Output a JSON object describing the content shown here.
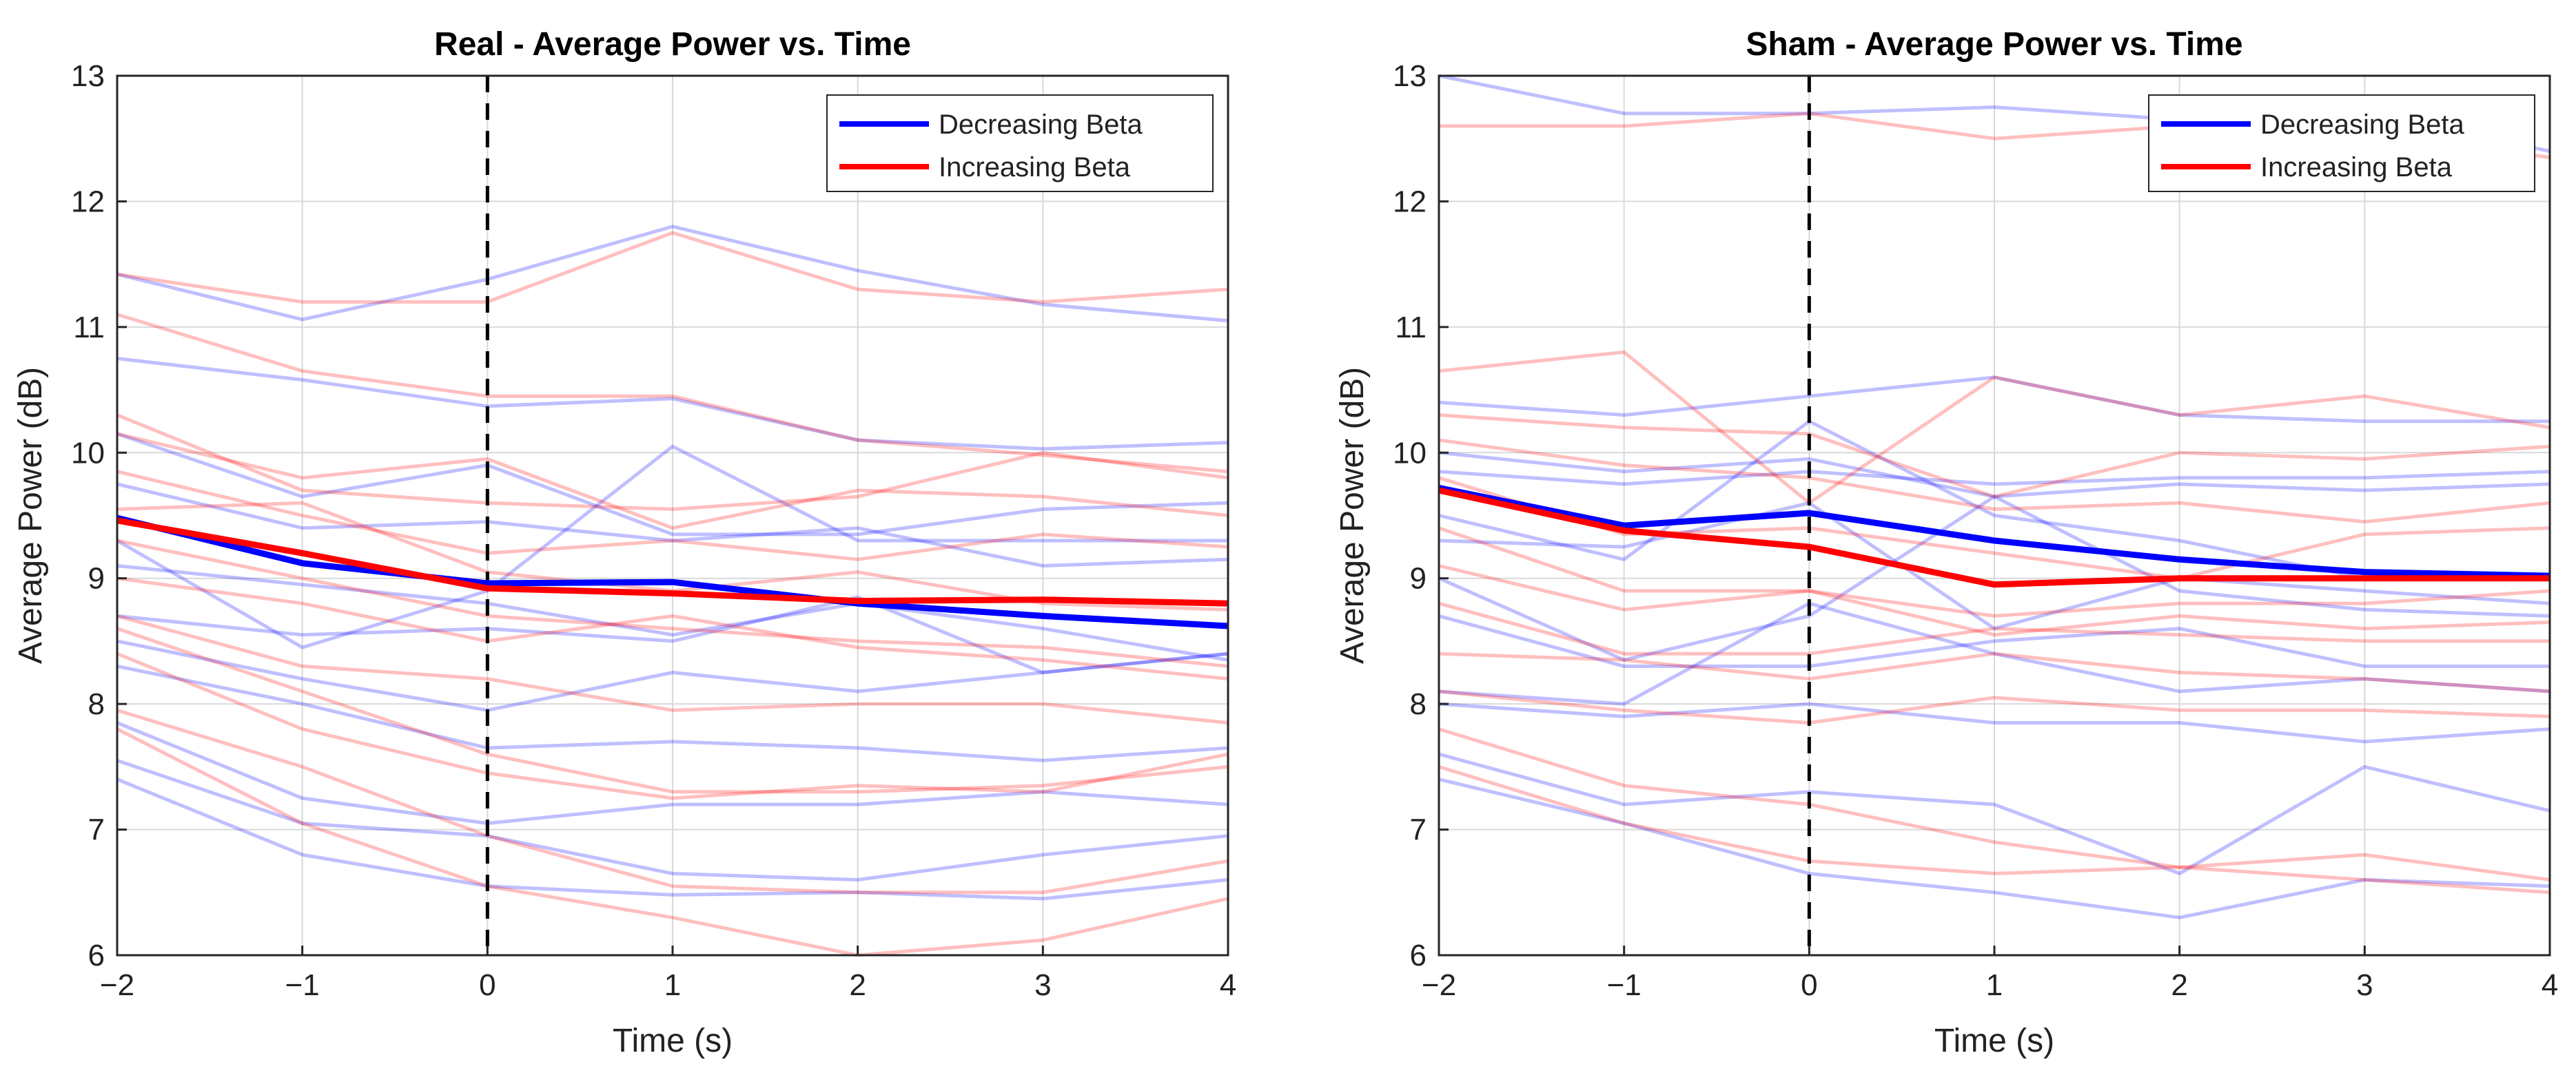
{
  "figure": {
    "background": "#ffffff",
    "colors": {
      "decreasing": "#0000ff",
      "increasing": "#ff0000",
      "grid": "#d9d9d9",
      "axis": "#262626",
      "marker": "#000000"
    }
  },
  "chart_data": [
    {
      "type": "line",
      "title": "Real - Average Power vs. Time",
      "xlabel": "Time (s)",
      "ylabel": "Average Power (dB)",
      "xlim": [
        -2,
        4
      ],
      "ylim": [
        6,
        13
      ],
      "xticks": [
        -2,
        -1,
        0,
        1,
        2,
        3,
        4
      ],
      "xtick_labels": [
        "−2",
        "−1",
        "0",
        "1",
        "2",
        "3",
        "4"
      ],
      "yticks": [
        6,
        7,
        8,
        9,
        10,
        11,
        12,
        13
      ],
      "ytick_labels": [
        "6",
        "7",
        "8",
        "9",
        "10",
        "11",
        "12",
        "13"
      ],
      "grid": true,
      "vline_x": 0,
      "legend": {
        "position": "top-right",
        "entries": [
          {
            "label": "Decreasing Beta",
            "color": "#0000ff"
          },
          {
            "label": "Increasing Beta",
            "color": "#ff0000"
          }
        ]
      },
      "x": [
        -2,
        -1,
        0,
        1,
        2,
        3,
        4
      ],
      "mean_series": [
        {
          "name": "Decreasing Beta",
          "color": "#0000ff",
          "values": [
            9.48,
            9.12,
            8.96,
            8.97,
            8.8,
            8.7,
            8.62
          ]
        },
        {
          "name": "Increasing Beta",
          "color": "#ff0000",
          "values": [
            9.46,
            9.2,
            8.92,
            8.88,
            8.82,
            8.83,
            8.8
          ]
        }
      ],
      "individual_series": [
        {
          "group": "Decreasing Beta",
          "values": [
            11.42,
            11.06,
            11.38,
            11.8,
            11.45,
            11.18,
            11.05
          ]
        },
        {
          "group": "Decreasing Beta",
          "values": [
            10.75,
            10.58,
            10.37,
            10.43,
            10.1,
            10.03,
            10.08
          ]
        },
        {
          "group": "Decreasing Beta",
          "values": [
            10.15,
            9.65,
            9.9,
            9.35,
            9.35,
            9.55,
            9.6
          ]
        },
        {
          "group": "Decreasing Beta",
          "values": [
            9.75,
            9.4,
            9.45,
            9.3,
            9.4,
            9.1,
            9.15
          ]
        },
        {
          "group": "Decreasing Beta",
          "values": [
            9.3,
            8.45,
            8.9,
            10.05,
            9.3,
            9.3,
            9.3
          ]
        },
        {
          "group": "Decreasing Beta",
          "values": [
            9.1,
            8.95,
            8.8,
            8.55,
            8.8,
            8.6,
            8.35
          ]
        },
        {
          "group": "Decreasing Beta",
          "values": [
            8.7,
            8.55,
            8.6,
            8.5,
            8.85,
            8.25,
            8.4
          ]
        },
        {
          "group": "Decreasing Beta",
          "values": [
            8.5,
            8.2,
            7.95,
            8.25,
            8.1,
            8.25,
            8.4
          ]
        },
        {
          "group": "Decreasing Beta",
          "values": [
            8.3,
            8.0,
            7.65,
            7.7,
            7.65,
            7.55,
            7.65
          ]
        },
        {
          "group": "Decreasing Beta",
          "values": [
            7.85,
            7.25,
            7.05,
            7.2,
            7.2,
            7.3,
            7.2
          ]
        },
        {
          "group": "Decreasing Beta",
          "values": [
            7.55,
            7.05,
            6.95,
            6.65,
            6.6,
            6.8,
            6.95
          ]
        },
        {
          "group": "Decreasing Beta",
          "values": [
            7.4,
            6.8,
            6.55,
            6.48,
            6.5,
            6.45,
            6.6
          ]
        },
        {
          "group": "Increasing Beta",
          "values": [
            11.42,
            11.2,
            11.2,
            11.75,
            11.3,
            11.2,
            11.3
          ]
        },
        {
          "group": "Increasing Beta",
          "values": [
            11.1,
            10.65,
            10.45,
            10.45,
            10.1,
            9.98,
            9.85
          ]
        },
        {
          "group": "Increasing Beta",
          "values": [
            10.3,
            9.7,
            9.6,
            9.55,
            9.65,
            10.0,
            9.8
          ]
        },
        {
          "group": "Increasing Beta",
          "values": [
            10.15,
            9.8,
            9.95,
            9.4,
            9.7,
            9.65,
            9.5
          ]
        },
        {
          "group": "Increasing Beta",
          "values": [
            9.85,
            9.5,
            9.2,
            9.3,
            9.15,
            9.35,
            9.25
          ]
        },
        {
          "group": "Increasing Beta",
          "values": [
            9.55,
            9.6,
            9.05,
            8.9,
            9.05,
            8.8,
            8.75
          ]
        },
        {
          "group": "Increasing Beta",
          "values": [
            9.3,
            9.0,
            8.7,
            8.6,
            8.5,
            8.45,
            8.3
          ]
        },
        {
          "group": "Increasing Beta",
          "values": [
            9.0,
            8.8,
            8.5,
            8.7,
            8.45,
            8.35,
            8.2
          ]
        },
        {
          "group": "Increasing Beta",
          "values": [
            8.7,
            8.3,
            8.2,
            7.95,
            8.0,
            8.0,
            7.85
          ]
        },
        {
          "group": "Increasing Beta",
          "values": [
            8.6,
            8.1,
            7.6,
            7.3,
            7.3,
            7.35,
            7.5
          ]
        },
        {
          "group": "Increasing Beta",
          "values": [
            8.4,
            7.8,
            7.45,
            7.25,
            7.35,
            7.3,
            7.6
          ]
        },
        {
          "group": "Increasing Beta",
          "values": [
            7.95,
            7.5,
            6.95,
            6.55,
            6.5,
            6.5,
            6.75
          ]
        },
        {
          "group": "Increasing Beta",
          "values": [
            7.8,
            7.05,
            6.55,
            6.3,
            6.0,
            6.12,
            6.45
          ]
        }
      ]
    },
    {
      "type": "line",
      "title": "Sham - Average Power vs. Time",
      "xlabel": "Time (s)",
      "ylabel": "Average Power (dB)",
      "xlim": [
        -2,
        4
      ],
      "ylim": [
        6,
        13
      ],
      "xticks": [
        -2,
        -1,
        0,
        1,
        2,
        3,
        4
      ],
      "xtick_labels": [
        "−2",
        "−1",
        "0",
        "1",
        "2",
        "3",
        "4"
      ],
      "yticks": [
        6,
        7,
        8,
        9,
        10,
        11,
        12,
        13
      ],
      "ytick_labels": [
        "6",
        "7",
        "8",
        "9",
        "10",
        "11",
        "12",
        "13"
      ],
      "grid": true,
      "vline_x": 0,
      "legend": {
        "position": "top-right",
        "entries": [
          {
            "label": "Decreasing Beta",
            "color": "#0000ff"
          },
          {
            "label": "Increasing Beta",
            "color": "#ff0000"
          }
        ]
      },
      "x": [
        -2,
        -1,
        0,
        1,
        2,
        3,
        4
      ],
      "mean_series": [
        {
          "name": "Decreasing Beta",
          "color": "#0000ff",
          "values": [
            9.72,
            9.42,
            9.52,
            9.3,
            9.15,
            9.05,
            9.02
          ]
        },
        {
          "name": "Increasing Beta",
          "color": "#ff0000",
          "values": [
            9.7,
            9.38,
            9.25,
            8.95,
            9.0,
            9.0,
            9.0
          ]
        }
      ],
      "individual_series": [
        {
          "group": "Decreasing Beta",
          "values": [
            13.0,
            12.7,
            12.7,
            12.75,
            12.65,
            12.7,
            12.4
          ]
        },
        {
          "group": "Decreasing Beta",
          "values": [
            10.4,
            10.3,
            10.45,
            10.6,
            10.3,
            10.25,
            10.25
          ]
        },
        {
          "group": "Decreasing Beta",
          "values": [
            10.0,
            9.85,
            9.95,
            9.65,
            9.75,
            9.7,
            9.75
          ]
        },
        {
          "group": "Decreasing Beta",
          "values": [
            9.85,
            9.75,
            9.85,
            9.75,
            9.8,
            9.8,
            9.85
          ]
        },
        {
          "group": "Decreasing Beta",
          "values": [
            9.5,
            9.15,
            10.25,
            9.5,
            9.3,
            9.0,
            9.0
          ]
        },
        {
          "group": "Decreasing Beta",
          "values": [
            9.3,
            9.25,
            9.6,
            8.6,
            9.0,
            8.9,
            8.8
          ]
        },
        {
          "group": "Decreasing Beta",
          "values": [
            9.0,
            8.35,
            8.7,
            9.65,
            8.9,
            8.75,
            8.7
          ]
        },
        {
          "group": "Decreasing Beta",
          "values": [
            8.7,
            8.3,
            8.3,
            8.5,
            8.6,
            8.3,
            8.3
          ]
        },
        {
          "group": "Decreasing Beta",
          "values": [
            8.1,
            8.0,
            8.8,
            8.4,
            8.1,
            8.2,
            8.1
          ]
        },
        {
          "group": "Decreasing Beta",
          "values": [
            8.0,
            7.9,
            8.0,
            7.85,
            7.85,
            7.7,
            7.8
          ]
        },
        {
          "group": "Decreasing Beta",
          "values": [
            7.6,
            7.2,
            7.3,
            7.2,
            6.65,
            7.5,
            7.15
          ]
        },
        {
          "group": "Decreasing Beta",
          "values": [
            7.4,
            7.05,
            6.65,
            6.5,
            6.3,
            6.6,
            6.55
          ]
        },
        {
          "group": "Increasing Beta",
          "values": [
            12.6,
            12.6,
            12.7,
            12.5,
            12.6,
            12.55,
            12.35
          ]
        },
        {
          "group": "Increasing Beta",
          "values": [
            10.65,
            10.8,
            9.6,
            10.6,
            10.3,
            10.45,
            10.2
          ]
        },
        {
          "group": "Increasing Beta",
          "values": [
            10.3,
            10.2,
            10.15,
            9.65,
            10.0,
            9.95,
            10.05
          ]
        },
        {
          "group": "Increasing Beta",
          "values": [
            10.1,
            9.9,
            9.8,
            9.55,
            9.6,
            9.45,
            9.6
          ]
        },
        {
          "group": "Increasing Beta",
          "values": [
            9.8,
            9.35,
            9.4,
            9.2,
            9.0,
            9.35,
            9.4
          ]
        },
        {
          "group": "Increasing Beta",
          "values": [
            9.4,
            8.9,
            8.9,
            8.7,
            8.8,
            8.8,
            8.9
          ]
        },
        {
          "group": "Increasing Beta",
          "values": [
            9.1,
            8.75,
            8.9,
            8.55,
            8.7,
            8.6,
            8.65
          ]
        },
        {
          "group": "Increasing Beta",
          "values": [
            8.8,
            8.4,
            8.4,
            8.6,
            8.55,
            8.5,
            8.5
          ]
        },
        {
          "group": "Increasing Beta",
          "values": [
            8.4,
            8.35,
            8.2,
            8.4,
            8.25,
            8.2,
            8.1
          ]
        },
        {
          "group": "Increasing Beta",
          "values": [
            8.1,
            7.95,
            7.85,
            8.05,
            7.95,
            7.95,
            7.9
          ]
        },
        {
          "group": "Increasing Beta",
          "values": [
            7.8,
            7.35,
            7.2,
            6.9,
            6.7,
            6.8,
            6.6
          ]
        },
        {
          "group": "Increasing Beta",
          "values": [
            7.5,
            7.05,
            6.75,
            6.65,
            6.7,
            6.6,
            6.5
          ]
        }
      ]
    }
  ]
}
